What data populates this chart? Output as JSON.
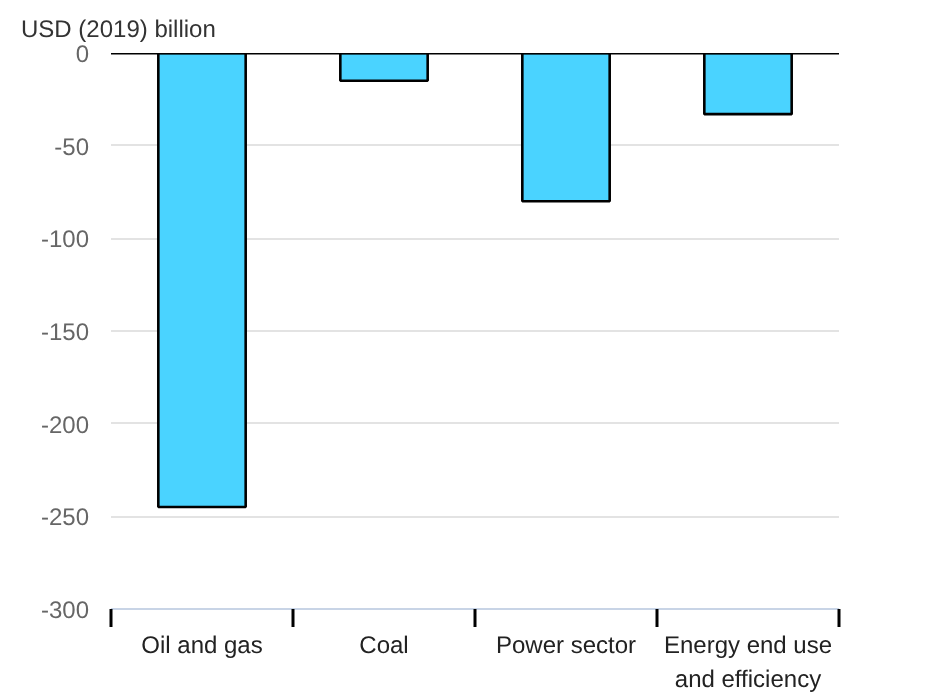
{
  "chart_data": {
    "type": "bar",
    "ylabel": "USD (2019) billion",
    "categories": [
      "Oil and gas",
      "Coal",
      "Power sector",
      "Energy end use\nand efficiency"
    ],
    "values": [
      -245,
      -15,
      -80,
      -33
    ],
    "color": "#4ad3ff",
    "ylim": [
      -300,
      0
    ],
    "yticks": [
      -300,
      -250,
      -200,
      -150,
      -100,
      -50,
      0
    ],
    "grid": "y"
  }
}
